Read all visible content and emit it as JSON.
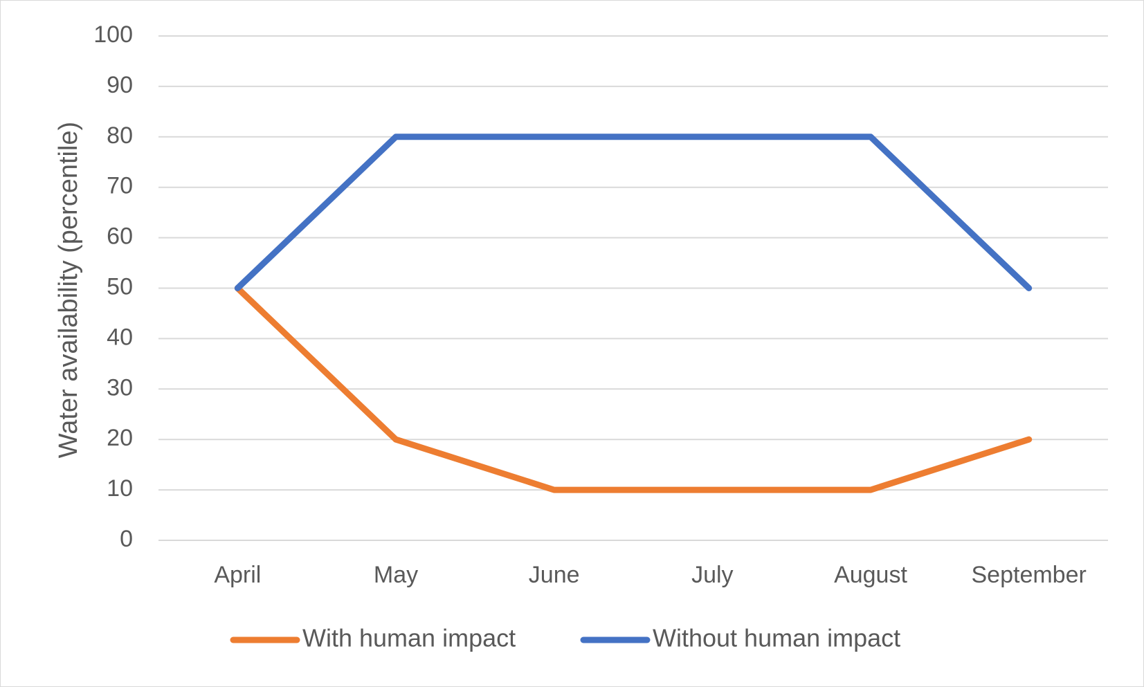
{
  "chart_data": {
    "type": "line",
    "title": "",
    "xlabel": "",
    "ylabel": "Water availability (percentile)",
    "categories": [
      "April",
      "May",
      "June",
      "July",
      "August",
      "September"
    ],
    "series": [
      {
        "name": "With human impact",
        "color": "#ED7D31",
        "values": [
          50,
          20,
          10,
          10,
          10,
          20
        ]
      },
      {
        "name": "Without human impact",
        "color": "#4472C4",
        "values": [
          50,
          80,
          80,
          80,
          80,
          50
        ]
      }
    ],
    "ylim": [
      0,
      100
    ],
    "yticks": [
      "0",
      "10",
      "20",
      "30",
      "40",
      "50",
      "60",
      "70",
      "80",
      "90",
      "100"
    ],
    "grid": true,
    "gridline_color": "#d9d9d9",
    "legend_position": "bottom"
  }
}
